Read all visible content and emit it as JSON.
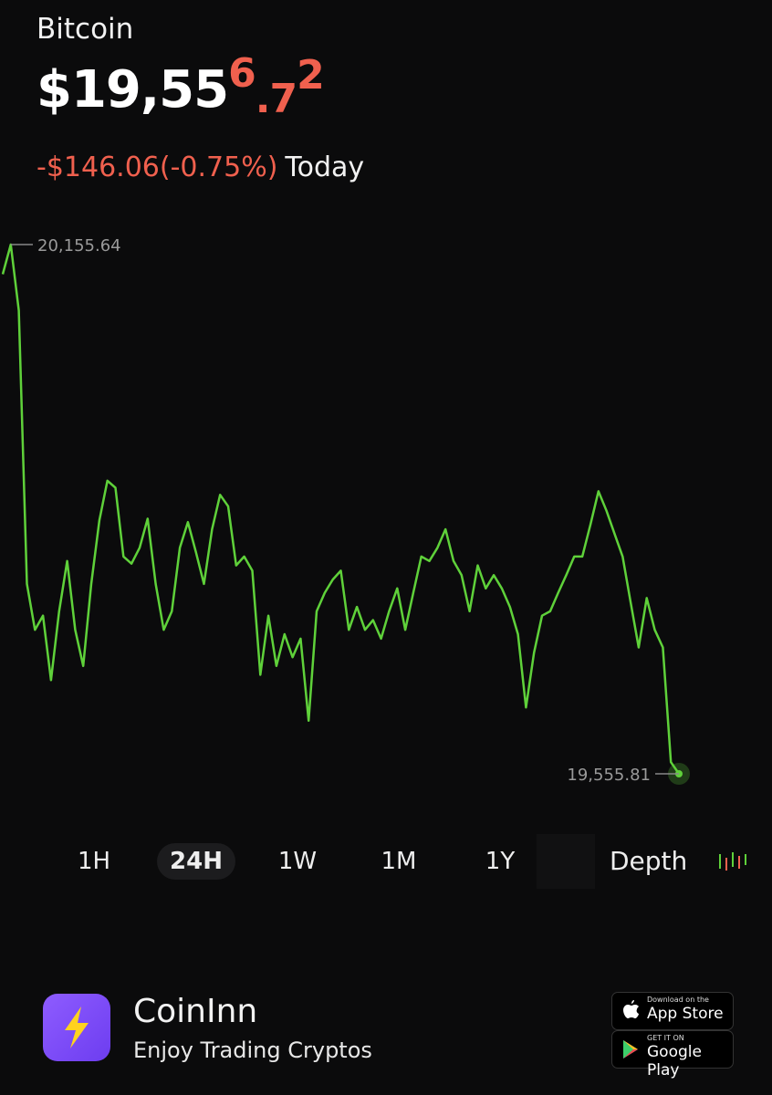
{
  "header": {
    "asset": "Bitcoin",
    "price_main": "$19,55",
    "price_digits": [
      "6",
      ".7",
      "2"
    ],
    "change": "-$146.06(-0.75%)",
    "period": "Today"
  },
  "chart_data": {
    "type": "line",
    "color": "#5fd13a",
    "values": [
      20122,
      20155.64,
      20081,
      19771,
      19719,
      19735,
      19662,
      19740,
      19797,
      19719,
      19678,
      19771,
      19843,
      19888,
      19880,
      19802,
      19794,
      19812,
      19845,
      19771,
      19719,
      19740,
      19812,
      19841,
      19807,
      19771,
      19833,
      19872,
      19859,
      19792,
      19802,
      19786,
      19668,
      19735,
      19678,
      19714,
      19688,
      19709,
      19616,
      19740,
      19761,
      19776,
      19786,
      19719,
      19745,
      19719,
      19730,
      19709,
      19740,
      19766,
      19719,
      19761,
      19802,
      19797,
      19812,
      19833,
      19797,
      19781,
      19740,
      19792,
      19766,
      19781,
      19766,
      19745,
      19714,
      19631,
      19693,
      19735,
      19740,
      19761,
      19781,
      19802,
      19802,
      19838,
      19876,
      19854,
      19828,
      19802,
      19750,
      19699,
      19755,
      19719,
      19699,
      19569,
      19555.81
    ],
    "ylim": [
      19555.81,
      20155.64
    ],
    "max_label": {
      "value": 20155.64,
      "label": "20,155.64"
    },
    "min_label": {
      "value": 19555.81,
      "label": "19,555.81"
    }
  },
  "ranges": [
    "1H",
    "24H",
    "1W",
    "1M",
    "1Y"
  ],
  "active_range": "24H",
  "depth": "Depth",
  "footer": {
    "brand": "CoinInn",
    "tagline": "Enjoy Trading Cryptos",
    "app_store": {
      "small": "Download on the",
      "large": "App Store"
    },
    "google_play": {
      "small": "GET IT ON",
      "large": "Google Play"
    }
  }
}
